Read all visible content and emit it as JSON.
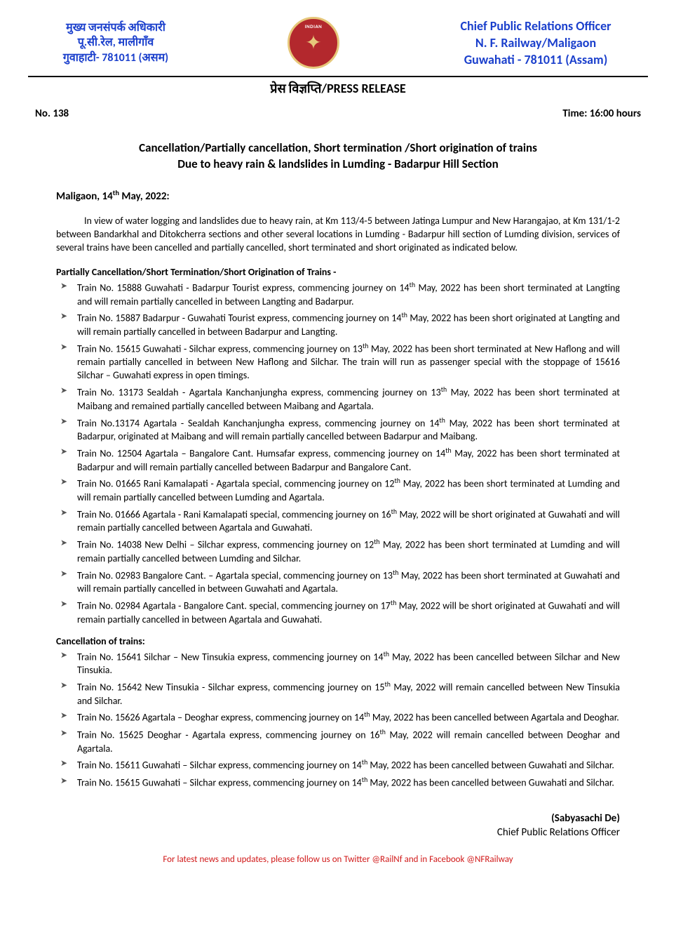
{
  "letterhead": {
    "left_line1": "मुख्य जनसंपर्क अधिकारी",
    "left_line2": "पू.सी.रेल, मालीगाँव",
    "left_line3": "गुवाहाटी- 781011 (असम)",
    "right_line1": "Chief Public Relations Officer",
    "right_line2": "N. F. Railway/Maligaon",
    "right_line3": "Guwahati - 781011 (Assam)",
    "logo_top_text": "INDIAN",
    "logo_colors": {
      "bg": "#b3282d",
      "ring": "#e6c77a"
    }
  },
  "heading": "प्रेस विज्ञप्ति/PRESS RELEASE",
  "meta": {
    "no_label": "No. 138",
    "time_label": "Time: 16:00 hours"
  },
  "title": {
    "line1": "Cancellation/Partially cancellation, Short termination /Short origination of trains",
    "line2": "Due to heavy rain & landslides in Lumding - Badarpur Hill Section"
  },
  "dateline_prefix": "Maligaon, 14",
  "dateline_sup": "th",
  "dateline_suffix": " May, 2022:",
  "intro": "In view of water logging and landslides due to heavy rain, at Km 113/4-5 between Jatinga Lumpur and New Harangajao, at Km 131/1-2 between Bandarkhal and Ditokcherra sections and other several locations in Lumding - Badarpur hill section of Lumding division, services of several trains have been cancelled and partially cancelled, short terminated and short originated as indicated below.",
  "section1_heading": "Partially Cancellation/Short Termination/Short Origination of Trains -",
  "section1_items": [
    {
      "p": "Train No. 15888 Guwahati - Badarpur Tourist express, commencing journey on 14",
      "s": "th",
      "q": " May, 2022 has been short terminated at Langting and will remain partially cancelled in between Langting and Badarpur."
    },
    {
      "p": "Train No. 15887 Badarpur - Guwahati Tourist express, commencing journey on 14",
      "s": "th",
      "q": " May, 2022 has been short originated at Langting and will remain partially cancelled in between Badarpur and Langting."
    },
    {
      "p": "Train No. 15615 Guwahati - Silchar express, commencing journey on 13",
      "s": "th",
      "q": " May, 2022 has been short terminated at New Haflong and will remain partially cancelled in between New Haflong and Silchar. The train will run as passenger special with the stoppage of 15616 Silchar – Guwahati express in open timings."
    },
    {
      "p": "Train No. 13173 Sealdah - Agartala Kanchanjungha express, commencing journey on 13",
      "s": "th",
      "q": " May, 2022 has been short terminated at Maibang and remained partially cancelled between Maibang and Agartala."
    },
    {
      "p": "Train No.13174 Agartala - Sealdah Kanchanjungha express, commencing journey on 14",
      "s": "th",
      "q": " May, 2022 has been short terminated at Badarpur, originated at Maibang and will remain partially cancelled between Badarpur and Maibang."
    },
    {
      "p": "Train No. 12504 Agartala – Bangalore Cant. Humsafar express, commencing journey on 14",
      "s": "th",
      "q": " May, 2022 has been short terminated at Badarpur and will remain partially cancelled between Badarpur and Bangalore Cant."
    },
    {
      "p": "Train No. 01665 Rani Kamalapati - Agartala special, commencing journey on 12",
      "s": "th",
      "q": " May, 2022 has been short terminated at Lumding and will remain partially cancelled between Lumding and Agartala."
    },
    {
      "p": "Train No. 01666 Agartala - Rani Kamalapati special, commencing journey on 16",
      "s": "th",
      "q": " May, 2022 will be short originated at Guwahati and will remain partially cancelled between Agartala and Guwahati."
    },
    {
      "p": "Train No. 14038 New Delhi – Silchar express, commencing journey on 12",
      "s": "th",
      "q": " May, 2022 has been short terminated at Lumding and will remain partially cancelled between Lumding and Silchar."
    },
    {
      "p": "Train No. 02983 Bangalore Cant. – Agartala special, commencing journey on 13",
      "s": "th",
      "q": " May, 2022 has been short terminated at Guwahati and will remain partially cancelled in between Guwahati and Agartala."
    },
    {
      "p": "Train No. 02984 Agartala - Bangalore Cant. special, commencing journey on 17",
      "s": "th",
      "q": " May, 2022 will be short originated at Guwahati and will remain partially cancelled in between Agartala and Guwahati."
    }
  ],
  "section2_heading": "Cancellation of trains:",
  "section2_items": [
    {
      "p": "Train No. 15641 Silchar – New Tinsukia express, commencing journey on 14",
      "s": "th",
      "q": " May, 2022 has been cancelled between Silchar and New Tinsukia."
    },
    {
      "p": "Train No. 15642 New Tinsukia - Silchar express, commencing journey on 15",
      "s": "th",
      "q": " May, 2022 will remain cancelled between New Tinsukia and Silchar."
    },
    {
      "p": "Train No. 15626 Agartala – Deoghar express, commencing journey on 14",
      "s": "th",
      "q": " May, 2022 has been cancelled between Agartala and Deoghar."
    },
    {
      "p": "Train No. 15625 Deoghar - Agartala express, commencing journey on 16",
      "s": "th",
      "q": " May, 2022 will remain cancelled between Deoghar and Agartala."
    },
    {
      "p": "Train No. 15611 Guwahati – Silchar express, commencing journey on 14",
      "s": "th",
      "q": " May, 2022 has been cancelled between Guwahati and Silchar."
    },
    {
      "p": "Train No. 15615 Guwahati – Silchar express, commencing journey on 14",
      "s": "th",
      "q": " May, 2022 has been cancelled between Guwahati and Silchar."
    }
  ],
  "signature": {
    "name": "(Sabyasachi De)",
    "title": "Chief Public Relations Officer"
  },
  "footer": "For latest news and updates, please follow us on Twitter @RailNf and in Facebook @NFRailway"
}
